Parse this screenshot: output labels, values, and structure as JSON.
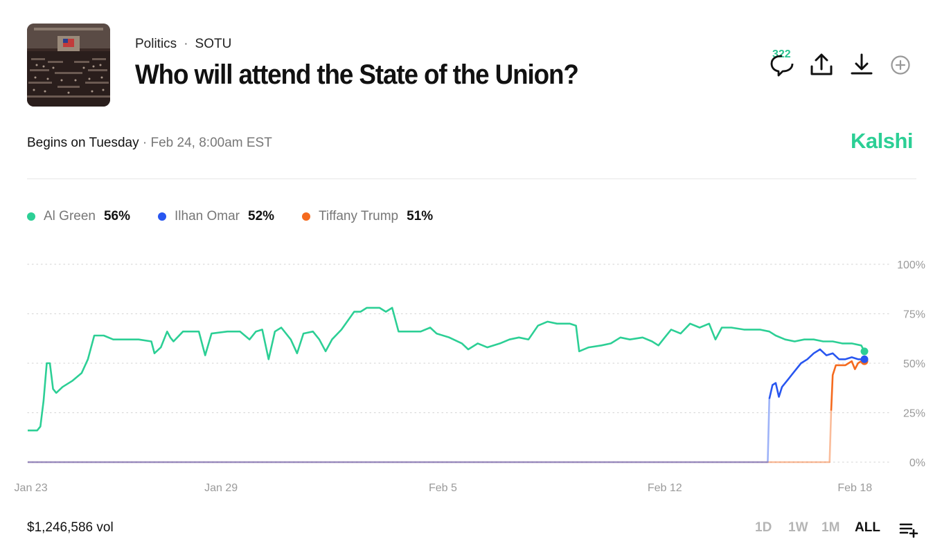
{
  "header": {
    "breadcrumb": [
      "Politics",
      "SOTU"
    ],
    "breadcrumb_sep": "·",
    "title": "Who will attend the State of the Union?",
    "comment_count": "322",
    "icons": [
      "comment-icon",
      "share-icon",
      "download-icon",
      "plus-circle-icon"
    ]
  },
  "event": {
    "begins_label": "Begins on Tuesday",
    "date": "· Feb 24, 8:00am EST",
    "brand": "Kalshi"
  },
  "colors": {
    "green": "#2ccf95",
    "blue": "#2856f0",
    "orange": "#f56a1e",
    "grid": "#d9d9d9",
    "axis_text": "#9a9a9a"
  },
  "legend": [
    {
      "name": "Al Green",
      "pct": "56%",
      "color": "#2ccf95"
    },
    {
      "name": "Ilhan Omar",
      "pct": "52%",
      "color": "#2856f0"
    },
    {
      "name": "Tiffany Trump",
      "pct": "51%",
      "color": "#f56a1e"
    }
  ],
  "chart_data": {
    "type": "line",
    "title": "Who will attend the State of the Union?",
    "xlabel": "",
    "ylabel": "",
    "x_range": [
      22.9,
      49.3
    ],
    "ylim": [
      0,
      100
    ],
    "y_ticks": [
      0,
      25,
      50,
      75,
      100
    ],
    "y_tick_labels": [
      "0%",
      "25%",
      "50%",
      "75%",
      "100%"
    ],
    "x_ticks": [
      23,
      29,
      36,
      43,
      49
    ],
    "x_tick_labels": [
      "Jan 23",
      "Jan 29",
      "Feb 5",
      "Feb 12",
      "Feb 18"
    ],
    "x_unit": "day index (Jan 1 = 1)",
    "grid": true,
    "series": [
      {
        "name": "Al Green",
        "color": "#2ccf95",
        "points": [
          [
            22.9,
            16
          ],
          [
            23.2,
            16
          ],
          [
            23.3,
            18
          ],
          [
            23.4,
            31
          ],
          [
            23.5,
            50
          ],
          [
            23.6,
            50
          ],
          [
            23.7,
            37
          ],
          [
            23.8,
            35
          ],
          [
            24.0,
            38
          ],
          [
            24.3,
            41
          ],
          [
            24.6,
            45
          ],
          [
            24.8,
            52
          ],
          [
            25.0,
            64
          ],
          [
            25.3,
            64
          ],
          [
            25.6,
            62
          ],
          [
            26.0,
            62
          ],
          [
            26.4,
            62
          ],
          [
            26.8,
            61
          ],
          [
            26.9,
            55
          ],
          [
            27.1,
            58
          ],
          [
            27.3,
            66
          ],
          [
            27.4,
            63
          ],
          [
            27.5,
            61
          ],
          [
            27.8,
            66
          ],
          [
            28.3,
            66
          ],
          [
            28.5,
            54
          ],
          [
            28.7,
            65
          ],
          [
            29.2,
            66
          ],
          [
            29.6,
            66
          ],
          [
            29.9,
            62
          ],
          [
            30.1,
            66
          ],
          [
            30.3,
            67
          ],
          [
            30.5,
            52
          ],
          [
            30.7,
            66
          ],
          [
            30.9,
            68
          ],
          [
            31.2,
            62
          ],
          [
            31.4,
            55
          ],
          [
            31.6,
            65
          ],
          [
            31.9,
            66
          ],
          [
            32.1,
            62
          ],
          [
            32.3,
            56
          ],
          [
            32.5,
            62
          ],
          [
            32.8,
            67
          ],
          [
            33.2,
            76
          ],
          [
            33.4,
            76
          ],
          [
            33.6,
            78
          ],
          [
            34.0,
            78
          ],
          [
            34.2,
            76
          ],
          [
            34.4,
            78
          ],
          [
            34.6,
            66
          ],
          [
            34.9,
            66
          ],
          [
            35.3,
            66
          ],
          [
            35.6,
            68
          ],
          [
            35.8,
            65
          ],
          [
            36.2,
            63
          ],
          [
            36.6,
            60
          ],
          [
            36.8,
            57
          ],
          [
            37.1,
            60
          ],
          [
            37.4,
            58
          ],
          [
            37.8,
            60
          ],
          [
            38.1,
            62
          ],
          [
            38.4,
            63
          ],
          [
            38.7,
            62
          ],
          [
            39.0,
            69
          ],
          [
            39.3,
            71
          ],
          [
            39.6,
            70
          ],
          [
            40.0,
            70
          ],
          [
            40.2,
            69
          ],
          [
            40.3,
            56
          ],
          [
            40.6,
            58
          ],
          [
            41.0,
            59
          ],
          [
            41.3,
            60
          ],
          [
            41.6,
            63
          ],
          [
            41.9,
            62
          ],
          [
            42.3,
            63
          ],
          [
            42.6,
            61
          ],
          [
            42.8,
            59
          ],
          [
            43.0,
            63
          ],
          [
            43.2,
            67
          ],
          [
            43.5,
            65
          ],
          [
            43.8,
            70
          ],
          [
            44.1,
            68
          ],
          [
            44.4,
            70
          ],
          [
            44.6,
            62
          ],
          [
            44.8,
            68
          ],
          [
            45.1,
            68
          ],
          [
            45.5,
            67
          ],
          [
            45.8,
            67
          ],
          [
            46.0,
            67
          ],
          [
            46.3,
            66
          ],
          [
            46.5,
            64
          ],
          [
            46.8,
            62
          ],
          [
            47.1,
            61
          ],
          [
            47.4,
            62
          ],
          [
            47.7,
            62
          ],
          [
            48.0,
            61
          ],
          [
            48.3,
            61
          ],
          [
            48.6,
            60
          ],
          [
            48.9,
            60
          ],
          [
            49.2,
            59
          ],
          [
            49.3,
            56
          ]
        ]
      },
      {
        "name": "Ilhan Omar",
        "color": "#2856f0",
        "points": [
          [
            22.9,
            0
          ],
          [
            46.25,
            0
          ],
          [
            46.3,
            32
          ],
          [
            46.4,
            39
          ],
          [
            46.5,
            40
          ],
          [
            46.6,
            33
          ],
          [
            46.7,
            38
          ],
          [
            46.9,
            42
          ],
          [
            47.1,
            46
          ],
          [
            47.3,
            50
          ],
          [
            47.5,
            52
          ],
          [
            47.7,
            55
          ],
          [
            47.9,
            57
          ],
          [
            48.1,
            54
          ],
          [
            48.3,
            55
          ],
          [
            48.5,
            52
          ],
          [
            48.7,
            52
          ],
          [
            48.9,
            53
          ],
          [
            49.1,
            52
          ],
          [
            49.3,
            52
          ]
        ]
      },
      {
        "name": "Tiffany Trump",
        "color": "#f56a1e",
        "points": [
          [
            22.9,
            0
          ],
          [
            48.2,
            0
          ],
          [
            48.25,
            26
          ],
          [
            48.3,
            44
          ],
          [
            48.4,
            49
          ],
          [
            48.7,
            49
          ],
          [
            48.9,
            51
          ],
          [
            49.0,
            47
          ],
          [
            49.1,
            50
          ],
          [
            49.2,
            51
          ],
          [
            49.3,
            51
          ]
        ]
      }
    ]
  },
  "footer": {
    "volume": "$1,246,586 vol",
    "ranges": [
      {
        "label": "1D",
        "active": false
      },
      {
        "label": "1W",
        "active": false
      },
      {
        "label": "1M",
        "active": false
      },
      {
        "label": "ALL",
        "active": true
      }
    ]
  }
}
